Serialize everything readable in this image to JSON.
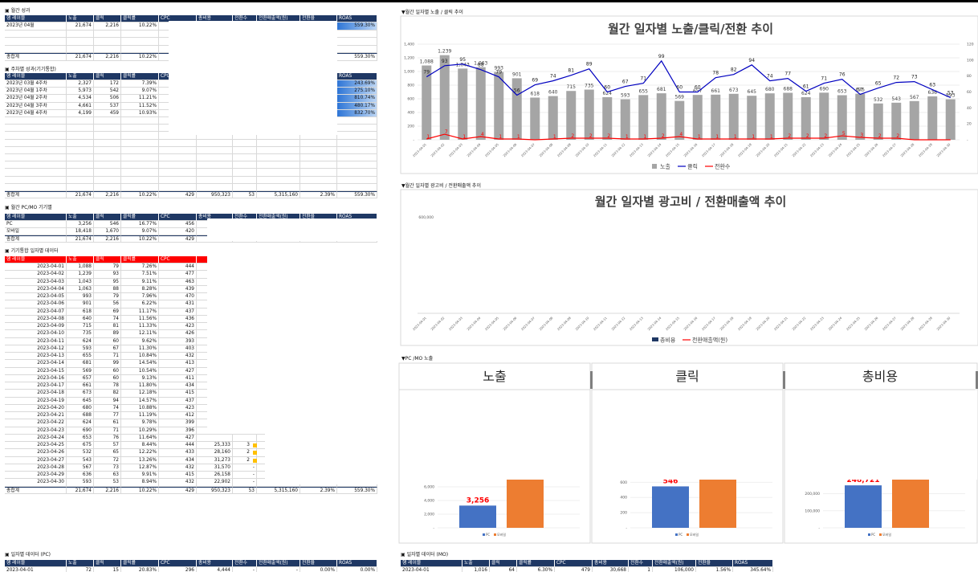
{
  "headings": [
    "▣ 월간 성과",
    "▣ 주차별 성과(기기통합)",
    "▣ 월간 PC/MO 기기별",
    "▣ 기기통합 일자별 데이터",
    "▣ 일자별 데이터 (PC)",
    "▣ 일자별 데이터 (MO)",
    "▼월간 일자별 노출 / 클릭 추이",
    "▼월간 일자별 광고비 / 전환매출액 추이",
    "▼PC /MO 노출"
  ],
  "tables": [
    {
      "header_color": "#1f3864",
      "header": [
        "행 레이블",
        "노출",
        "클릭",
        "클릭률",
        "CPC",
        "총비용",
        "전환수",
        "전환매출액(원)",
        "전환율",
        "ROAS"
      ],
      "rows": [
        [
          "2023년 04월",
          "21,674",
          "2,216",
          "10.22%",
          null,
          null,
          null,
          null,
          null,
          "559.30%"
        ],
        [
          "총합계",
          "21,674",
          "2,216",
          "10.22%",
          null,
          null,
          null,
          null,
          null,
          "559.30%"
        ]
      ]
    },
    {
      "header_color": "#1f3864",
      "header": [
        "행 레이블",
        "노출",
        "클릭",
        "클릭률",
        "CPC",
        null,
        null,
        null,
        null,
        "ROAS"
      ],
      "rows": [
        [
          "2023년 03월 4주차",
          "2,327",
          "172",
          "7.39%",
          null,
          null,
          null,
          null,
          null,
          "243.69%"
        ],
        [
          "2023년 04월 1주차",
          "5,973",
          "542",
          "9.07%",
          null,
          null,
          null,
          null,
          null,
          "275.10%"
        ],
        [
          "2023년 04월 2주차",
          "4,534",
          "506",
          "11.21%",
          null,
          null,
          null,
          null,
          null,
          "810.74%"
        ],
        [
          "2023년 04월 3주차",
          "4,661",
          "537",
          "11.52%",
          null,
          null,
          null,
          null,
          null,
          "480.17%"
        ],
        [
          "2023년 04월 4주차",
          "4,199",
          "459",
          "10.93%",
          null,
          null,
          null,
          null,
          null,
          "832.70%"
        ],
        [
          "총합계",
          "21,674",
          "2,216",
          "10.22%",
          "429",
          "950,323",
          "53",
          "5,315,160",
          "2.39%",
          "559.30%"
        ]
      ]
    },
    {
      "header_color": "#1f3864",
      "header": [
        "행 레이블",
        "노출",
        "클릭",
        "클릭률",
        "CPC",
        "총비용",
        "전환수",
        "전환매출액(원)",
        "전환율",
        "ROAS"
      ],
      "rows": [
        [
          "PC",
          "3,256",
          "546",
          "16.77%",
          "456"
        ],
        [
          "모바일",
          "18,418",
          "1,670",
          "9.07%",
          "420"
        ],
        [
          "총합계",
          "21,674",
          "2,216",
          "10.22%",
          "429"
        ]
      ]
    },
    {
      "header_color": "#ff0000",
      "header": [
        "행 레이블",
        "노출",
        "클릭",
        "클릭률",
        "CPC"
      ],
      "rows": [
        [
          "2023-04-01",
          "1,088",
          "79",
          "7.26%",
          "444"
        ],
        [
          "2023-04-02",
          "1,239",
          "93",
          "7.51%",
          "477"
        ],
        [
          "2023-04-03",
          "1,043",
          "95",
          "9.11%",
          "463"
        ],
        [
          "2023-04-04",
          "1,063",
          "88",
          "8.28%",
          "439"
        ],
        [
          "2023-04-05",
          "993",
          "79",
          "7.96%",
          "470"
        ],
        [
          "2023-04-06",
          "901",
          "56",
          "6.22%",
          "431"
        ],
        [
          "2023-04-07",
          "618",
          "69",
          "11.17%",
          "437"
        ],
        [
          "2023-04-08",
          "640",
          "74",
          "11.56%",
          "436"
        ],
        [
          "2023-04-09",
          "715",
          "81",
          "11.33%",
          "423"
        ],
        [
          "2023-04-10",
          "735",
          "89",
          "12.11%",
          "426"
        ],
        [
          "2023-04-11",
          "624",
          "60",
          "9.62%",
          "393"
        ],
        [
          "2023-04-12",
          "593",
          "67",
          "11.30%",
          "403"
        ],
        [
          "2023-04-13",
          "655",
          "71",
          "10.84%",
          "432"
        ],
        [
          "2023-04-14",
          "681",
          "99",
          "14.54%",
          "413"
        ],
        [
          "2023-04-15",
          "569",
          "60",
          "10.54%",
          "427"
        ],
        [
          "2023-04-16",
          "657",
          "60",
          "9.13%",
          "411"
        ],
        [
          "2023-04-17",
          "661",
          "78",
          "11.80%",
          "434"
        ],
        [
          "2023-04-18",
          "673",
          "82",
          "12.18%",
          "415"
        ],
        [
          "2023-04-19",
          "645",
          "94",
          "14.57%",
          "437"
        ],
        [
          "2023-04-20",
          "680",
          "74",
          "10.88%",
          "423"
        ],
        [
          "2023-04-21",
          "688",
          "77",
          "11.19%",
          "412"
        ],
        [
          "2023-04-22",
          "624",
          "61",
          "9.78%",
          "399"
        ],
        [
          "2023-04-23",
          "690",
          "71",
          "10.29%",
          "396"
        ],
        [
          "2023-04-24",
          "653",
          "76",
          "11.64%",
          "427"
        ],
        [
          "2023-04-25",
          "675",
          "57",
          "8.44%",
          "444",
          "25,333",
          "3"
        ],
        [
          "2023-04-26",
          "532",
          "65",
          "12.22%",
          "433",
          "28,160",
          "2"
        ],
        [
          "2023-04-27",
          "543",
          "72",
          "13.26%",
          "434",
          "31,273",
          "2"
        ],
        [
          "2023-04-28",
          "567",
          "73",
          "12.87%",
          "432",
          "31,570",
          "-"
        ],
        [
          "2023-04-29",
          "636",
          "63",
          "9.91%",
          "415",
          "26,158",
          "-"
        ],
        [
          "2023-04-30",
          "593",
          "53",
          "8.94%",
          "432",
          "22,902",
          "-"
        ],
        [
          "총합계",
          "21,674",
          "2,216",
          "10.22%",
          "429",
          "950,323",
          "53",
          "5,315,160",
          "2.39%",
          "559.30%"
        ]
      ]
    },
    {
      "header_color": "#1f3864",
      "header": [
        "행 레이블",
        "노출",
        "클릭",
        "클릭률",
        "CPC",
        "총비용",
        "전환수",
        "전환매출액(원)",
        "전환율",
        "ROAS"
      ],
      "rows": [
        [
          "2023-04-01",
          "72",
          "15",
          "20.83%",
          "296",
          "4,444",
          "-",
          "-",
          "0.00%",
          "0.00%"
        ]
      ]
    },
    {
      "header_color": "#1f3864",
      "header": [
        "행 레이블",
        "노출",
        "클릭",
        "클릭률",
        "CPC",
        "총비용",
        "전환수",
        "전환매출액(원)",
        "전환율",
        "ROAS"
      ],
      "rows": [
        [
          "2023-04-01",
          "1,016",
          "64",
          "6.30%",
          "479",
          "30,668",
          "1",
          "106,000",
          "1.56%",
          "345.64%"
        ]
      ]
    }
  ],
  "chart_data": [
    {
      "type": "combo",
      "title": "월간 일자별 노출/클릭/전환 추이",
      "categories": [
        "2023-04-01",
        "2023-04-02",
        "2023-04-03",
        "2023-04-04",
        "2023-04-05",
        "2023-04-06",
        "2023-04-07",
        "2023-04-08",
        "2023-04-09",
        "2023-04-10",
        "2023-04-11",
        "2023-04-12",
        "2023-04-13",
        "2023-04-14",
        "2023-04-15",
        "2023-04-16",
        "2023-04-17",
        "2023-04-18",
        "2023-04-19",
        "2023-04-20",
        "2023-04-21",
        "2023-04-22",
        "2023-04-23",
        "2023-04-24",
        "2023-04-25",
        "2023-04-26",
        "2023-04-27",
        "2023-04-28",
        "2023-04-29",
        "2023-04-30"
      ],
      "series": [
        {
          "name": "노출",
          "type": "bar",
          "color": "#a5a5a5",
          "values": [
            1088,
            1239,
            1043,
            1063,
            993,
            901,
            618,
            640,
            715,
            735,
            624,
            593,
            655,
            681,
            569,
            657,
            661,
            673,
            645,
            680,
            688,
            624,
            690,
            653,
            675,
            532,
            543,
            567,
            636,
            593
          ],
          "value_labels": [
            "1,088",
            "1,239",
            "1,043",
            "1,063",
            "993",
            "901",
            "618",
            "640",
            "715",
            "735",
            "624",
            "593",
            "655",
            "681",
            "569",
            "657",
            "661",
            "673",
            "645",
            "680",
            "688",
            "624",
            "690",
            "653",
            "675",
            "532",
            "543",
            "567",
            "636",
            "593"
          ]
        },
        {
          "name": "클릭",
          "type": "line",
          "axis": "y2",
          "color": "#0000c0",
          "values": [
            79,
            93,
            95,
            88,
            79,
            56,
            69,
            74,
            81,
            89,
            60,
            67,
            71,
            99,
            60,
            60,
            78,
            82,
            94,
            74,
            77,
            61,
            71,
            76,
            57,
            65,
            72,
            73,
            63,
            53
          ]
        },
        {
          "name": "전환수",
          "type": "line",
          "axis": "y2",
          "color": "#ff0000",
          "values": [
            1,
            7,
            1,
            4,
            1,
            1,
            0,
            1,
            2,
            2,
            2,
            1,
            1,
            2,
            4,
            1,
            1,
            1,
            1,
            1,
            2,
            2,
            2,
            5,
            3,
            2,
            2,
            0,
            0,
            0
          ]
        }
      ],
      "ylim": [
        0,
        1400
      ],
      "yticks": [
        {
          "value": 0,
          "label": "-"
        },
        200,
        400,
        600,
        800,
        {
          "value": 1000,
          "label": "1,000"
        },
        {
          "value": 1200,
          "label": "1,200"
        },
        {
          "value": 1400,
          "label": "1,400"
        }
      ],
      "y2lim": [
        0,
        120
      ],
      "y2ticks": [
        {
          "value": 0,
          "label": "-"
        },
        20,
        40,
        60,
        80,
        100,
        120
      ],
      "legend": "bottom"
    },
    {
      "type": "combo",
      "title": "월간 일자별 광고비 / 전환매출액 추이",
      "series": [
        {
          "name": "총비용",
          "type": "bar",
          "color": "#1f3864"
        },
        {
          "name": "전환매출액(원)",
          "type": "line",
          "color": "#ff0000"
        }
      ],
      "yticks": [
        {
          "value": 600000,
          "label": "600,000"
        }
      ],
      "legend": "bottom"
    },
    {
      "type": "bar",
      "title": "노출",
      "categories": [
        "PC",
        "모바일"
      ],
      "values": [
        3256,
        18418
      ],
      "value_labels": [
        "3,256",
        "18,418"
      ],
      "colors": [
        "#4472c4",
        "#ed7d31"
      ],
      "ylim": [
        0,
        20000
      ],
      "yticks": [
        {
          "value": 0,
          "label": "-"
        },
        {
          "value": 2000,
          "label": "2,000"
        },
        {
          "value": 4000,
          "label": "4,000"
        },
        {
          "value": 6000,
          "label": "6,000"
        }
      ]
    },
    {
      "type": "bar",
      "title": "클릭",
      "categories": [
        "PC",
        "모바일"
      ],
      "values": [
        546,
        1670
      ],
      "colors": [
        "#4472c4",
        "#ed7d31"
      ],
      "ylim": [
        0,
        1800
      ],
      "yticks": [
        {
          "value": 0,
          "label": "-"
        },
        200,
        400,
        600
      ]
    },
    {
      "type": "bar",
      "title": "총비용",
      "categories": [
        "PC",
        "모바일"
      ],
      "values": [
        248721,
        701602
      ],
      "value_labels": [
        "248,721",
        "701,602"
      ],
      "colors": [
        "#4472c4",
        "#ed7d31"
      ],
      "ylim": [
        0,
        800000
      ],
      "yticks": [
        {
          "value": 0,
          "label": "-"
        },
        {
          "value": 100000,
          "label": "100,000"
        },
        {
          "value": 200000,
          "label": "200,000"
        }
      ]
    }
  ]
}
